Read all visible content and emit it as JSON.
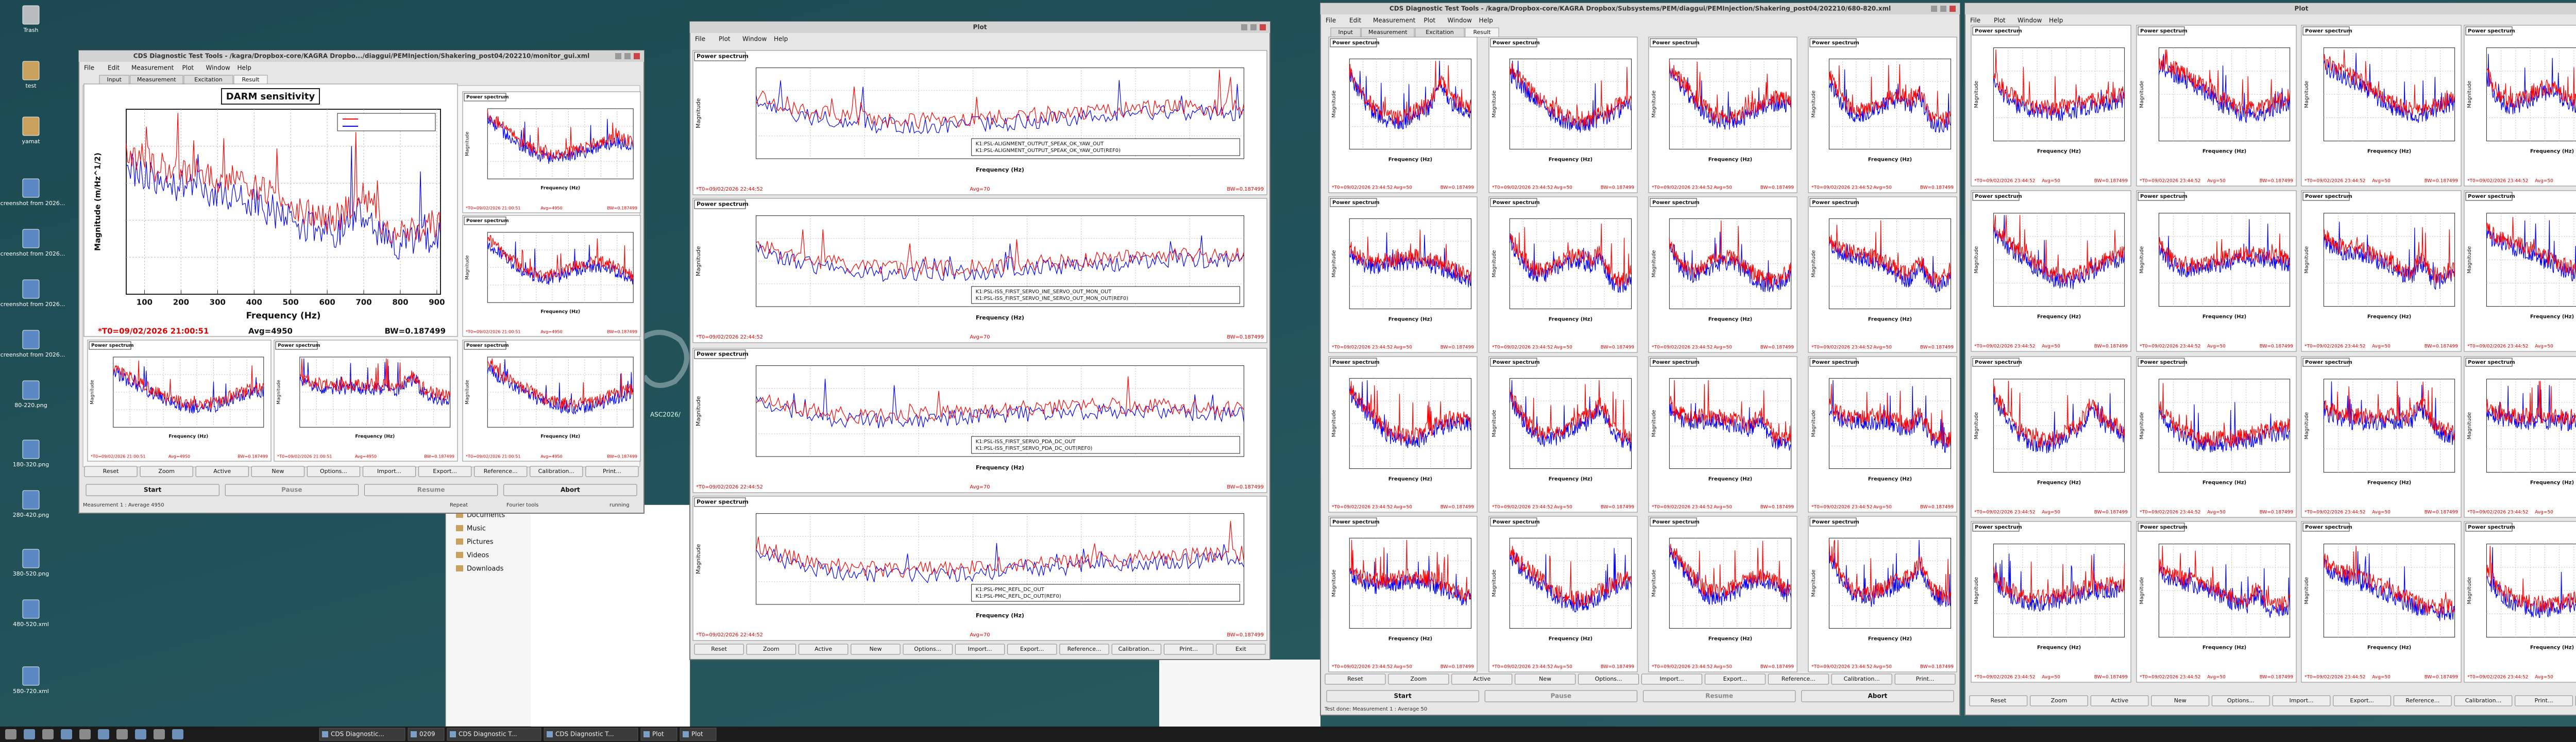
{
  "desktop": {
    "icons": [
      "Trash",
      "test",
      "yamat",
      "Screenshot from 2026...",
      "Screenshot from 2026...",
      "Screenshot from 2026...",
      "Screenshot from 2026...",
      "80-220.png",
      "180-320.png",
      "280-420.png",
      "380-520.png",
      "480-520.xml",
      "580-720.xml"
    ],
    "background_text": "ASC2026/"
  },
  "common": {
    "panel_title": "Power spectrum",
    "y_label": "Magnitude",
    "x_label": "Frequency (Hz)",
    "tabs": [
      "Input",
      "Measurement",
      "Excitation",
      "Result"
    ],
    "plot_buttons": [
      "Reset",
      "Zoom",
      "Active",
      "New",
      "Options...",
      "Import...",
      "Export...",
      "Reference...",
      "Calibration...",
      "Print..."
    ],
    "exit_button": "Exit",
    "control_buttons": [
      "Start",
      "Pause",
      "Resume",
      "Abort"
    ]
  },
  "windows": [
    {
      "title": "CDS Diagnostic Test Tools - /kagra/Dropbox-core/KAGRA Dropbo.../diaggui/PEMInjection/Shakering_post04/202210/monitor_gui.xml",
      "menu": [
        "File",
        "Edit",
        "Measurement",
        "Plot",
        "Window",
        "Help"
      ],
      "main_plot": {
        "title": "DARM sensitivity",
        "y_label": "Magnitude (m/Hz^1/2)",
        "x_label": "Frequency (Hz)",
        "xlim": [
          50,
          910
        ],
        "xticks": [
          100,
          200,
          300,
          400,
          500,
          600,
          700,
          800,
          900
        ],
        "t0": "*T0=09/02/2026 21:00:51",
        "avg": "Avg=4950",
        "bw": "BW=0.187499"
      },
      "status": [
        "Measurement 1 : Average 4950",
        "Repeat",
        "Fourier tools",
        "running"
      ]
    },
    {
      "title": "Plot",
      "menu": [
        "File",
        "Plot",
        "Window",
        "Help"
      ],
      "legends": [
        [
          "K1:PSL-ALIGNMENT_OUTPUT_SPEAK_OK_YAW_OUT",
          "K1:PSL-ALIGNMENT_OUTPUT_SPEAK_OK_YAW_OUT(REF0)"
        ],
        [
          "K1:PSL-ISS_FIRST_SERVO_INE_SERVO_OUT_MON_OUT",
          "K1:PSL-ISS_FIRST_SERVO_INE_SERVO_OUT_MON_OUT(REF0)"
        ],
        [
          "K1:PSL-ISS_FIRST_SERVO_PDA_DC_OUT",
          "K1:PSL-ISS_FIRST_SERVO_PDA_DC_OUT(REF0)"
        ],
        [
          "K1:PSL-PMC_REFL_DC_OUT",
          "K1:PSL-PMC_REFL_DC_OUT(REF0)"
        ]
      ],
      "t0": "*T0=09/02/2026 22:44:52",
      "avg": "Avg=70",
      "bw": "BW=0.187499"
    },
    {
      "title": "CDS Diagnostic Test Tools - /kagra/Dropbox-core/KAGRA Dropbox/Subsystems/PEM/diaggui/PEMInjection/Shakering_post04/202210/680-820.xml",
      "menu": [
        "File",
        "Edit",
        "Measurement",
        "Plot",
        "Window",
        "Help"
      ],
      "status": "Test done: Measurement 1 : Average 50",
      "t0": "*T0=09/02/2026 23:44:52",
      "avg": "Avg=50",
      "bw": "BW=0.187499"
    },
    {
      "title": "Plot",
      "menu": [
        "File",
        "Plot",
        "Window",
        "Help"
      ]
    }
  ],
  "file_manager": {
    "places": [
      "Documents",
      "Music",
      "Pictures",
      "Videos",
      "Downloads"
    ]
  },
  "taskbar": {
    "items": [
      "CDS Diagnostic...",
      "0209",
      "CDS Diagnostic T...",
      "CDS Diagnostic T...",
      "Plot",
      "Plot"
    ]
  }
}
